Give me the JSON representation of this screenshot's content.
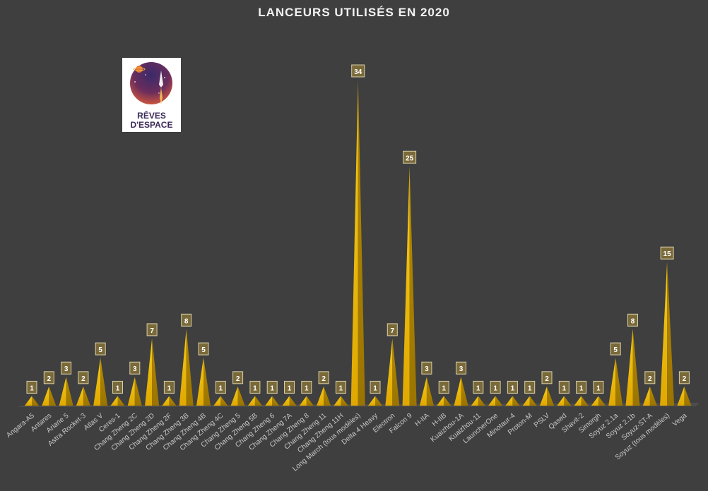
{
  "chart_data": {
    "type": "bar",
    "title": "LANCEURS UTILISÉS EN 2020",
    "categories": [
      "Angara-A5",
      "Antares",
      "Ariane 5",
      "Astra Rocket-3",
      "Atlas V",
      "Ceres-1",
      "Chang Zheng 2C",
      "Chang Zheng 2D",
      "Chang Zheng 2F",
      "Chang Zheng 3B",
      "Chang Zheng 4B",
      "Chang Zheng 4C",
      "Chang Zheng 5",
      "Chang Zheng 5B",
      "Chang Zheng 6",
      "Chang Zheng 7A",
      "Chang Zheng 8",
      "Chang Zheng 11",
      "Chang Zheng 11H",
      "Long March (tous modèles)",
      "Delta 4 Heavy",
      "Electron",
      "Falcon 9",
      "H-IIA",
      "H-IIB",
      "Kuaizhou-1A",
      "Kuaizhou-11",
      "LauncherOne",
      "Minotaur-4",
      "Proton-M",
      "PSLV",
      "Qased",
      "Shavit-2",
      "Simorgh",
      "Soyuz 2.1a",
      "Soyuz 2.1b",
      "Soyuz-ST-A",
      "Soyuz (tous modèles)",
      "Vega"
    ],
    "values": [
      1,
      2,
      3,
      2,
      5,
      1,
      3,
      7,
      1,
      8,
      5,
      1,
      2,
      1,
      1,
      1,
      1,
      2,
      1,
      34,
      1,
      7,
      25,
      3,
      1,
      3,
      1,
      1,
      1,
      1,
      2,
      1,
      1,
      1,
      5,
      8,
      2,
      15,
      2
    ],
    "ylim": [
      0,
      34
    ],
    "grid": false,
    "legend": "none",
    "bar_color": "#e6b800",
    "label_box_color": "#7a6a3a"
  },
  "logo": {
    "line1": "RÊVES",
    "line2": "D'ESPACE"
  }
}
